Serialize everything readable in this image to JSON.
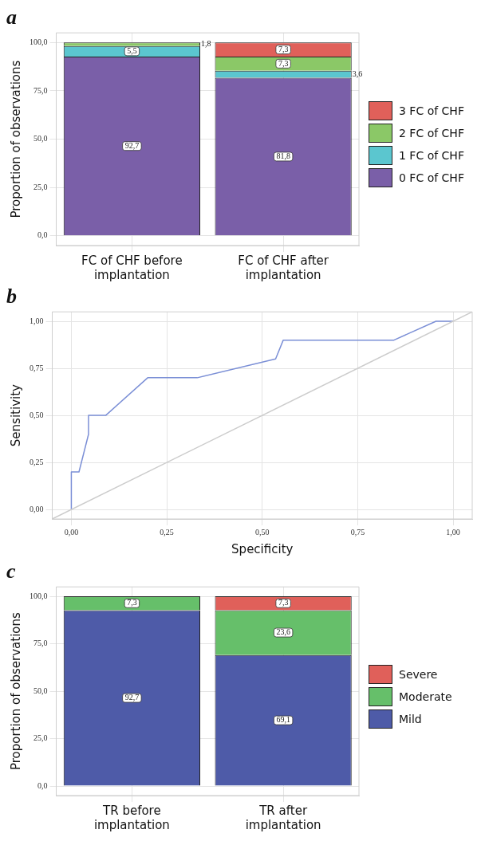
{
  "chart_data": [
    {
      "type": "bar",
      "title": "a",
      "ylabel": "Proportion of observations",
      "categories": [
        "FC of CHF before implantation",
        "FC of CHF after implantation"
      ],
      "stacked": true,
      "ylim": [
        -5,
        105
      ],
      "yticks": [
        {
          "value": 0,
          "label": "0,0"
        },
        {
          "value": 25,
          "label": "25,0"
        },
        {
          "value": 50,
          "label": "50,0"
        },
        {
          "value": 75,
          "label": "75,0"
        },
        {
          "value": 100,
          "label": "100,0"
        }
      ],
      "grid": true,
      "legend": "right",
      "series": [
        {
          "name": "0 FC of CHF",
          "color": "#7a5fa8",
          "values": [
            92.7,
            81.8
          ],
          "value_labels": [
            "92,7",
            "81,8"
          ]
        },
        {
          "name": "1 FC of CHF",
          "color": "#5bc6cf",
          "values": [
            5.5,
            3.6
          ],
          "value_labels": [
            "5,5",
            "3,6"
          ]
        },
        {
          "name": "2 FC of CHF",
          "color": "#8bc867",
          "values": [
            1.8,
            7.3
          ],
          "value_labels": [
            "1,8",
            "7,3"
          ]
        },
        {
          "name": "3 FC of CHF",
          "color": "#e0605a",
          "values": [
            0,
            7.3
          ],
          "value_labels": [
            null,
            "7,3"
          ]
        }
      ]
    },
    {
      "type": "line",
      "title": "b",
      "xlabel": "Specificity",
      "ylabel": "Sensitivity",
      "xlim": [
        -0.05,
        1.05
      ],
      "ylim": [
        -0.05,
        1.05
      ],
      "xticks": [
        {
          "value": 0,
          "label": "0,00"
        },
        {
          "value": 0.25,
          "label": "0,25"
        },
        {
          "value": 0.5,
          "label": "0,50"
        },
        {
          "value": 0.75,
          "label": "0,75"
        },
        {
          "value": 1,
          "label": "1,00"
        }
      ],
      "yticks": [
        {
          "value": 0,
          "label": "0,00"
        },
        {
          "value": 0.25,
          "label": "0,25"
        },
        {
          "value": 0.5,
          "label": "0,50"
        },
        {
          "value": 0.75,
          "label": "0,75"
        },
        {
          "value": 1,
          "label": "1,00"
        }
      ],
      "grid": true,
      "marker": "none",
      "series": [
        {
          "color": "#cccccc",
          "x": [
            -0.05,
            1.05
          ],
          "values": [
            -0.05,
            1.05
          ]
        },
        {
          "color": "#7b8fd6",
          "x": [
            0,
            0,
            0.02,
            0.045,
            0.045,
            0.09,
            0.2,
            0.33,
            0.535,
            0.555,
            0.845,
            0.955,
            1.0
          ],
          "values": [
            0,
            0.2,
            0.2,
            0.4,
            0.5,
            0.5,
            0.7,
            0.7,
            0.8,
            0.9,
            0.9,
            1.0,
            1.0
          ]
        }
      ]
    },
    {
      "type": "bar",
      "title": "c",
      "ylabel": "Proportion of observations",
      "categories": [
        "TR before implantation",
        "TR after implantation"
      ],
      "stacked": true,
      "ylim": [
        -5,
        105
      ],
      "yticks": [
        {
          "value": 0,
          "label": "0,0"
        },
        {
          "value": 25,
          "label": "25,0"
        },
        {
          "value": 50,
          "label": "50,0"
        },
        {
          "value": 75,
          "label": "75,0"
        },
        {
          "value": 100,
          "label": "100,0"
        }
      ],
      "grid": true,
      "legend": "right",
      "series": [
        {
          "name": "Mild",
          "color": "#4e5ba8",
          "values": [
            92.7,
            69.1
          ],
          "value_labels": [
            "92,7",
            "69,1"
          ]
        },
        {
          "name": "Moderate",
          "color": "#66bf6a",
          "values": [
            7.3,
            23.6
          ],
          "value_labels": [
            "7,3",
            "23,6"
          ]
        },
        {
          "name": "Severe",
          "color": "#e0605a",
          "values": [
            0,
            7.3
          ],
          "value_labels": [
            null,
            "7,3"
          ]
        }
      ]
    }
  ]
}
